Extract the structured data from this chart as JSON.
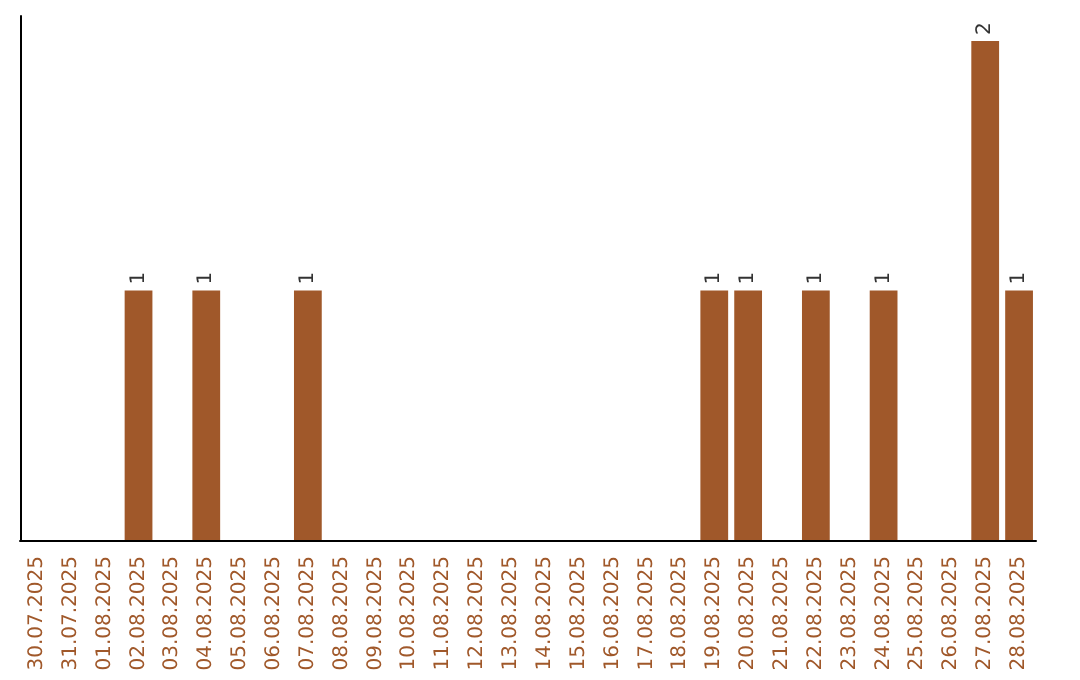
{
  "chart_data": {
    "type": "bar",
    "categories": [
      "30.07.2025",
      "31.07.2025",
      "01.08.2025",
      "02.08.2025",
      "03.08.2025",
      "04.08.2025",
      "05.08.2025",
      "06.08.2025",
      "07.08.2025",
      "08.08.2025",
      "09.08.2025",
      "10.08.2025",
      "11.08.2025",
      "12.08.2025",
      "13.08.2025",
      "14.08.2025",
      "15.08.2025",
      "16.08.2025",
      "17.08.2025",
      "18.08.2025",
      "19.08.2025",
      "20.08.2025",
      "21.08.2025",
      "22.08.2025",
      "23.08.2025",
      "24.08.2025",
      "25.08.2025",
      "26.08.2025",
      "27.08.2025",
      "28.08.2025"
    ],
    "values": [
      0,
      0,
      0,
      1,
      0,
      1,
      0,
      0,
      1,
      0,
      0,
      0,
      0,
      0,
      0,
      0,
      0,
      0,
      0,
      0,
      1,
      1,
      0,
      1,
      0,
      1,
      0,
      0,
      2,
      1
    ],
    "value_labels": [
      null,
      null,
      null,
      "1",
      null,
      "1",
      null,
      null,
      "1",
      null,
      null,
      null,
      null,
      null,
      null,
      null,
      null,
      null,
      null,
      null,
      "1",
      "1",
      null,
      "1",
      null,
      "1",
      null,
      null,
      "2",
      "1"
    ],
    "color": "#a0582a",
    "tick_labels": "x"
  }
}
